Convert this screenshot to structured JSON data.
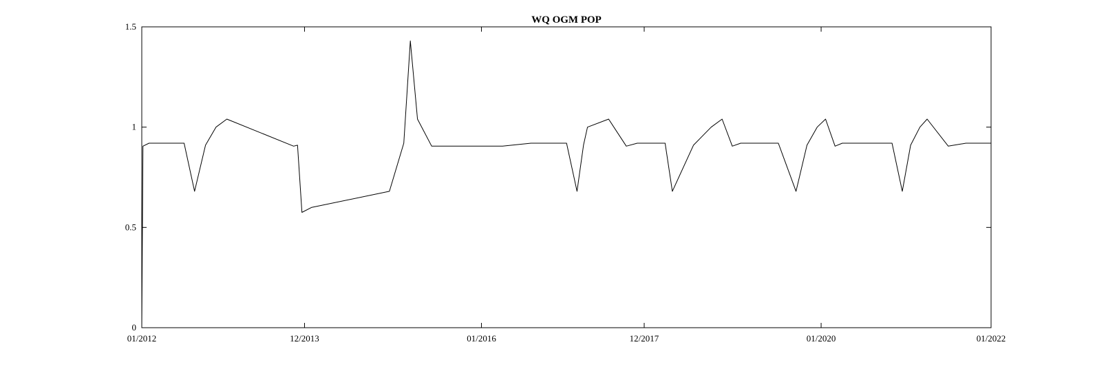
{
  "chart_data": {
    "type": "line",
    "title": "WQ OGM POP",
    "xlabel": "",
    "ylabel": "",
    "x_axis_type": "date",
    "xlim": [
      "2012-01-01",
      "2022-01-01"
    ],
    "ylim": [
      0,
      1.5
    ],
    "x_ticks": [
      {
        "date": "2012-01-01",
        "label": "01/2012"
      },
      {
        "date": "2013-12-01",
        "label": "12/2013"
      },
      {
        "date": "2016-01-01",
        "label": "01/2016"
      },
      {
        "date": "2017-12-01",
        "label": "12/2017"
      },
      {
        "date": "2020-01-01",
        "label": "01/2020"
      },
      {
        "date": "2022-01-01",
        "label": "01/2022"
      }
    ],
    "y_ticks": [
      0,
      0.5,
      1,
      1.5
    ],
    "y_tick_labels": [
      "0",
      "0.5",
      "1",
      "1.5"
    ],
    "grid": false,
    "box": true,
    "line_color": "#000000",
    "series": [
      {
        "x": [
          "2012-01-01",
          "2012-01-06",
          "2012-02-01",
          "2012-03-01",
          "2012-07-01",
          "2012-08-15",
          "2012-10-01",
          "2012-11-15",
          "2013-01-01",
          "2013-10-15",
          "2013-11-01",
          "2013-11-20",
          "2014-01-01",
          "2014-12-01",
          "2015-02-01",
          "2015-03-01",
          "2015-04-01",
          "2015-06-01",
          "2016-01-01",
          "2016-03-01",
          "2016-04-01",
          "2016-08-01",
          "2016-10-01",
          "2016-11-15",
          "2017-01-01",
          "2017-02-15",
          "2017-03-15",
          "2017-04-01",
          "2017-07-01",
          "2017-09-15",
          "2017-11-01",
          "2017-12-15",
          "2018-01-20",
          "2018-03-01",
          "2018-04-01",
          "2018-07-01",
          "2018-09-15",
          "2018-11-01",
          "2018-12-15",
          "2019-01-20",
          "2019-03-01",
          "2019-04-01",
          "2019-07-01",
          "2019-09-15",
          "2019-11-01",
          "2019-12-15",
          "2020-01-20",
          "2020-03-01",
          "2020-04-01",
          "2020-07-01",
          "2020-09-15",
          "2020-11-01",
          "2020-12-15",
          "2021-01-20",
          "2021-03-01",
          "2021-04-01",
          "2021-07-01",
          "2021-09-15",
          "2021-11-01",
          "2021-12-15",
          "2022-01-01"
        ],
        "y": [
          0.0,
          0.905,
          0.92,
          0.92,
          0.92,
          0.68,
          0.91,
          1.0,
          1.04,
          0.905,
          0.91,
          0.575,
          0.6,
          0.68,
          0.92,
          1.43,
          1.04,
          0.905,
          0.905,
          0.905,
          0.905,
          0.92,
          0.92,
          0.92,
          0.92,
          0.68,
          0.91,
          1.0,
          1.04,
          0.905,
          0.92,
          0.92,
          0.92,
          0.92,
          0.68,
          0.91,
          1.0,
          1.04,
          0.905,
          0.92,
          0.92,
          0.92,
          0.92,
          0.68,
          0.91,
          1.0,
          1.04,
          0.905,
          0.92,
          0.92,
          0.92,
          0.92,
          0.68,
          0.91,
          1.0,
          1.04,
          0.905,
          0.92,
          0.92,
          0.92,
          0.92
        ]
      }
    ]
  }
}
